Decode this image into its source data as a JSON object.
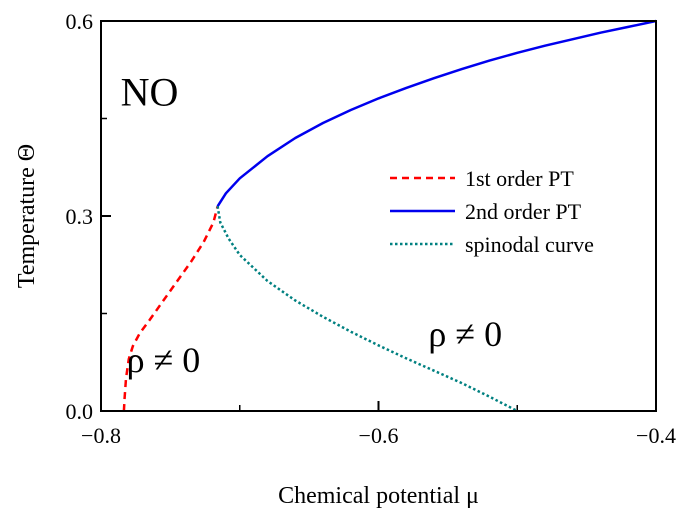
{
  "chart_data": {
    "type": "line",
    "xlabel": "Chemical potential μ",
    "ylabel": "Temperature Θ",
    "xlim": [
      -0.8,
      -0.4
    ],
    "ylim": [
      0.0,
      0.6
    ],
    "xticks": [
      -0.8,
      -0.6,
      -0.4
    ],
    "yticks": [
      0.0,
      0.3,
      0.6
    ],
    "xtick_labels": [
      "−0.8",
      "−0.6",
      "−0.4"
    ],
    "ytick_labels": [
      "0.0",
      "0.3",
      "0.6"
    ],
    "grid": false,
    "legend_position": "center-right",
    "series": [
      {
        "name": "1st order PT",
        "color": "#ff0000",
        "style": "dashed",
        "x": [
          -0.7835,
          -0.783,
          -0.782,
          -0.78,
          -0.777,
          -0.772,
          -0.765,
          -0.755,
          -0.745,
          -0.735,
          -0.726,
          -0.719,
          -0.716
        ],
        "y": [
          0.0,
          0.02,
          0.05,
          0.08,
          0.1,
          0.12,
          0.14,
          0.17,
          0.2,
          0.23,
          0.26,
          0.29,
          0.315
        ]
      },
      {
        "name": "2nd order PT",
        "color": "#0000ee",
        "style": "solid",
        "x": [
          -0.716,
          -0.71,
          -0.7,
          -0.68,
          -0.66,
          -0.64,
          -0.62,
          -0.6,
          -0.58,
          -0.56,
          -0.54,
          -0.52,
          -0.5,
          -0.48,
          -0.46,
          -0.44,
          -0.42,
          -0.4
        ],
        "y": [
          0.315,
          0.335,
          0.358,
          0.392,
          0.42,
          0.443,
          0.463,
          0.481,
          0.497,
          0.512,
          0.526,
          0.539,
          0.551,
          0.562,
          0.572,
          0.582,
          0.591,
          0.6
        ]
      },
      {
        "name": "spinodal curve",
        "color": "#008080",
        "style": "dotted",
        "x": [
          -0.716,
          -0.714,
          -0.708,
          -0.7,
          -0.68,
          -0.66,
          -0.64,
          -0.62,
          -0.6,
          -0.58,
          -0.56,
          -0.54,
          -0.52,
          -0.5
        ],
        "y": [
          0.315,
          0.29,
          0.265,
          0.24,
          0.2,
          0.17,
          0.145,
          0.122,
          0.101,
          0.081,
          0.062,
          0.043,
          0.022,
          0.0
        ]
      }
    ],
    "annotations": [
      {
        "text": "NO",
        "x": -0.765,
        "y": 0.47,
        "size": "big"
      },
      {
        "text": "ρ ≠ 0",
        "x": -0.755,
        "y": 0.06,
        "size": "rho"
      },
      {
        "text": "ρ ≠ 0",
        "x": -0.5375,
        "y": 0.1,
        "size": "rho"
      }
    ]
  }
}
